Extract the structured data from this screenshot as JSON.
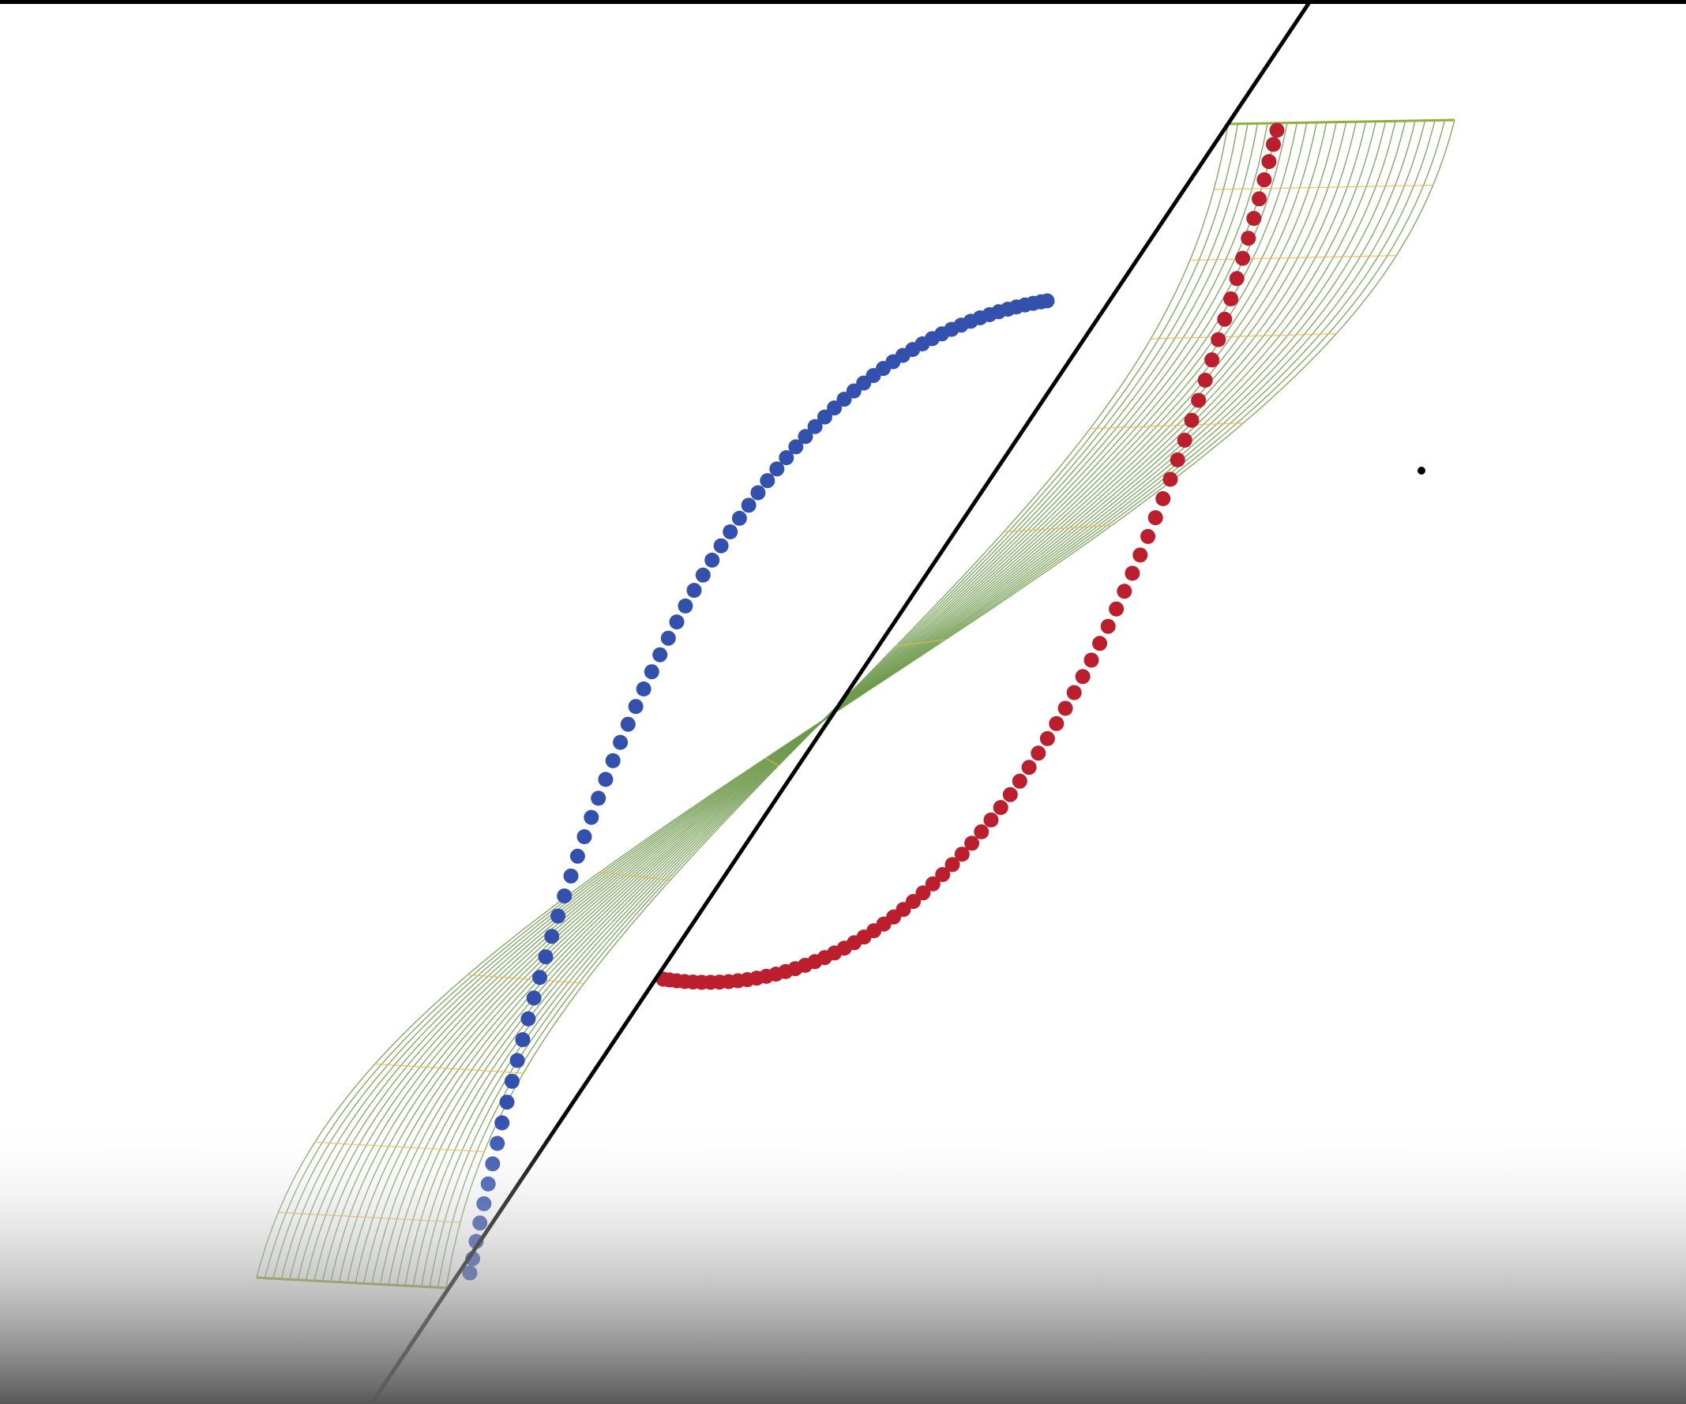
{
  "colors": {
    "background": "#ffffff",
    "top_border": "#000000",
    "bottom_shade_start": "#ffffff",
    "bottom_shade_end": "#585858",
    "surface_long_lines": "#6f9a4c",
    "surface_cross_lines": "#e8b64a",
    "surface_edge": "#8fae3a",
    "blue_points": "#3350ad",
    "red_points": "#bb1e2c",
    "straight_line": "#000000",
    "marker_dot": "#000000"
  },
  "figure": {
    "kind": "3d-sigmoid-surface-with-two-point-curves",
    "surface": {
      "long_line_count": 24,
      "cross_line_count": 14
    },
    "series": [
      {
        "color_key": "blue_points",
        "point_count": 75
      },
      {
        "color_key": "red_points",
        "point_count": 75
      }
    ],
    "straight_line": true,
    "marker_dot": true
  }
}
